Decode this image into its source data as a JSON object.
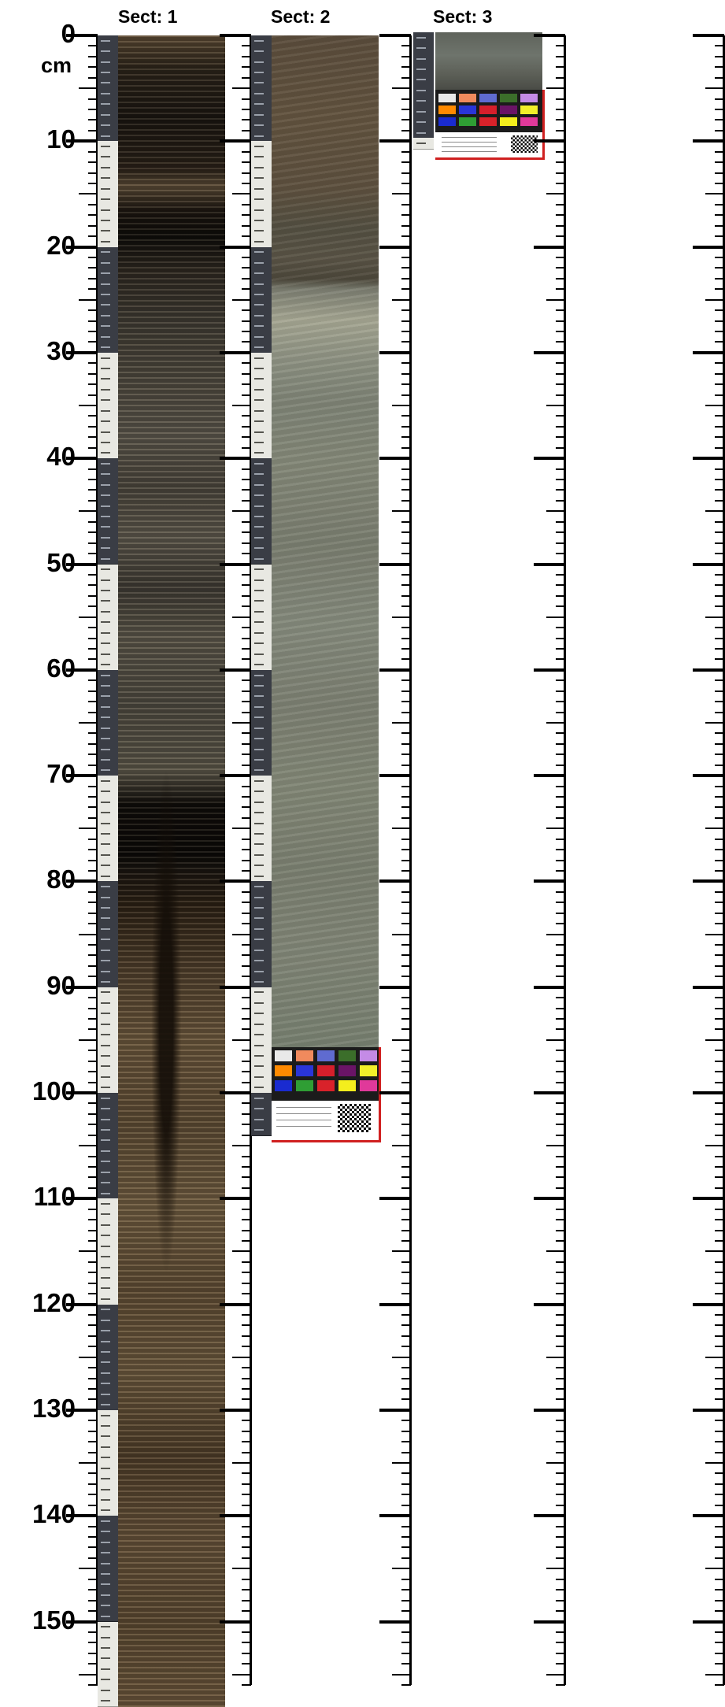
{
  "axis": {
    "unit": "cm",
    "depth_labels": [
      "0",
      "10",
      "20",
      "30",
      "40",
      "50",
      "60",
      "70",
      "80",
      "90",
      "100",
      "110",
      "120",
      "130",
      "140",
      "150"
    ]
  },
  "sections": [
    {
      "label": "Sect: 1"
    },
    {
      "label": "Sect: 2"
    },
    {
      "label": "Sect: 3"
    }
  ]
}
